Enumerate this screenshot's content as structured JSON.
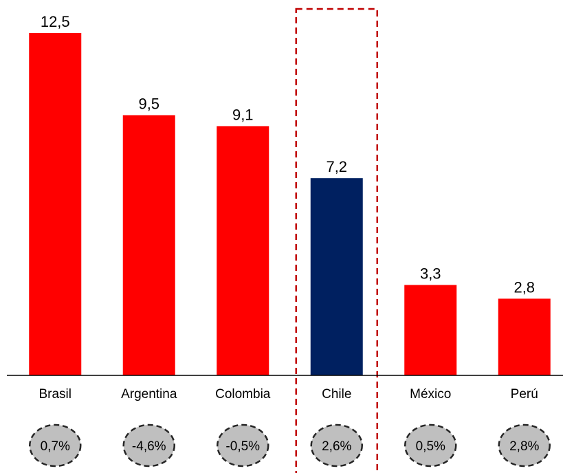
{
  "chart_data": {
    "type": "bar",
    "categories": [
      "Brasil",
      "Argentina",
      "Colombia",
      "Chile",
      "México",
      "Perú"
    ],
    "values": [
      12.5,
      9.5,
      9.1,
      7.2,
      3.3,
      2.8
    ],
    "value_labels": [
      "12,5",
      "9,5",
      "9,1",
      "7,2",
      "3,3",
      "2,8"
    ],
    "growth_labels": [
      "0,7%",
      "-4,6%",
      "-0,5%",
      "2,6%",
      "0,5%",
      "2,8%"
    ],
    "highlight_category": "Chile",
    "ylim": [
      0,
      12.5
    ],
    "grid": false,
    "title": "",
    "xlabel": "",
    "ylabel": ""
  },
  "colors": {
    "bar": "#ff0000",
    "highlight_bar": "#002060",
    "highlight_border": "#c00000",
    "badge_fill": "#bfbfbf",
    "badge_stroke": "#262626",
    "axis": "#000000"
  }
}
